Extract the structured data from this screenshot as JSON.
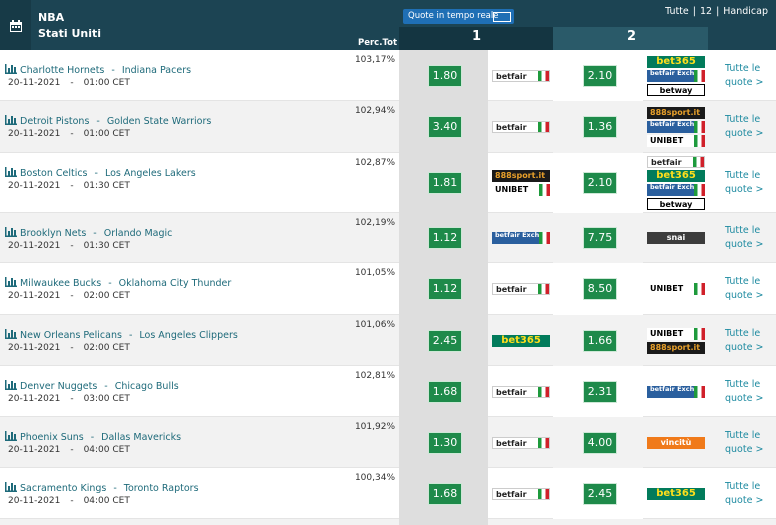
{
  "header": {
    "league": "NBA",
    "country": "Stati Uniti",
    "perc_label": "Perc.Tot",
    "live_button": "Quote in tempo reale",
    "top_links": [
      "Tutte",
      "12",
      "Handicap"
    ],
    "link_separator": "|",
    "col1": "1",
    "col2": "2"
  },
  "team_separator": "-",
  "all_odds_link": "Tutte le quote >",
  "table": {
    "rows": [
      {
        "home": "Charlotte Hornets",
        "away": "Indiana Pacers",
        "date": "20-11-2021",
        "time": "01:00 CET",
        "perc": "103,17%",
        "odd1": "1.80",
        "books1": [
          "betfair"
        ],
        "odd2": "2.10",
        "books2": [
          "bet365",
          "betfair Exchange",
          "betway"
        ]
      },
      {
        "home": "Detroit Pistons",
        "away": "Golden State Warriors",
        "date": "20-11-2021",
        "time": "01:00 CET",
        "perc": "102,94%",
        "odd1": "3.40",
        "books1": [
          "betfair"
        ],
        "odd2": "1.36",
        "books2": [
          "888sport.it",
          "betfair Exchange",
          "UNIBET"
        ]
      },
      {
        "home": "Boston Celtics",
        "away": "Los Angeles Lakers",
        "date": "20-11-2021",
        "time": "01:30 CET",
        "perc": "102,87%",
        "odd1": "1.81",
        "books1": [
          "888sport.it",
          "UNIBET"
        ],
        "odd2": "2.10",
        "books2": [
          "betfair",
          "bet365",
          "betfair Exchange",
          "betway"
        ]
      },
      {
        "home": "Brooklyn Nets",
        "away": "Orlando Magic",
        "date": "20-11-2021",
        "time": "01:30 CET",
        "perc": "102,19%",
        "odd1": "1.12",
        "books1": [
          "betfair Exchange"
        ],
        "odd2": "7.75",
        "books2": [
          "snai"
        ]
      },
      {
        "home": "Milwaukee Bucks",
        "away": "Oklahoma City Thunder",
        "date": "20-11-2021",
        "time": "02:00 CET",
        "perc": "101,05%",
        "odd1": "1.12",
        "books1": [
          "betfair"
        ],
        "odd2": "8.50",
        "books2": [
          "UNIBET"
        ]
      },
      {
        "home": "New Orleans Pelicans",
        "away": "Los Angeles Clippers",
        "date": "20-11-2021",
        "time": "02:00 CET",
        "perc": "101,06%",
        "odd1": "2.45",
        "books1": [
          "bet365"
        ],
        "odd2": "1.66",
        "books2": [
          "UNIBET",
          "888sport.it"
        ]
      },
      {
        "home": "Denver Nuggets",
        "away": "Chicago Bulls",
        "date": "20-11-2021",
        "time": "03:00 CET",
        "perc": "102,81%",
        "odd1": "1.68",
        "books1": [
          "betfair"
        ],
        "odd2": "2.31",
        "books2": [
          "betfair Exchange"
        ]
      },
      {
        "home": "Phoenix Suns",
        "away": "Dallas Mavericks",
        "date": "20-11-2021",
        "time": "04:00 CET",
        "perc": "101,92%",
        "odd1": "1.30",
        "books1": [
          "betfair"
        ],
        "odd2": "4.00",
        "books2": [
          "vincitù"
        ]
      },
      {
        "home": "Sacramento Kings",
        "away": "Toronto Raptors",
        "date": "20-11-2021",
        "time": "04:00 CET",
        "perc": "100,34%",
        "odd1": "1.68",
        "books1": [
          "betfair"
        ],
        "odd2": "2.45",
        "books2": [
          "bet365"
        ]
      }
    ]
  }
}
